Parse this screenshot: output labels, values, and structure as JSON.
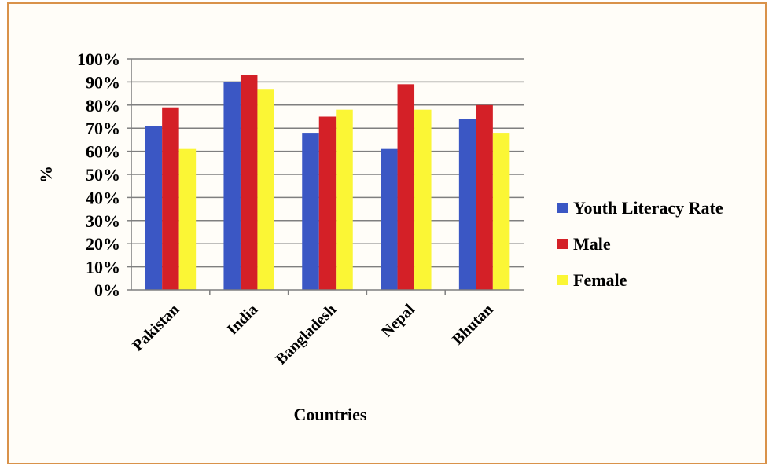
{
  "chart_data": {
    "type": "bar",
    "title": "",
    "xlabel": "Countries",
    "ylabel": "%",
    "ylim": [
      0,
      100
    ],
    "yticks": [
      "0%",
      "10%",
      "20%",
      "30%",
      "40%",
      "50%",
      "60%",
      "70%",
      "80%",
      "90%",
      "100%"
    ],
    "grid": true,
    "legend_position": "right",
    "categories": [
      "Pakistan",
      "India",
      "Bangladesh",
      "Nepal",
      "Bhutan"
    ],
    "series": [
      {
        "name": "Youth Literacy Rate",
        "color": "#3b57c4",
        "values": [
          71,
          90,
          68,
          61,
          74
        ]
      },
      {
        "name": "Male",
        "color": "#d42027",
        "values": [
          79,
          93,
          75,
          89,
          80
        ]
      },
      {
        "name": "Female",
        "color": "#fbf635",
        "values": [
          61,
          87,
          78,
          78,
          68
        ]
      }
    ]
  }
}
